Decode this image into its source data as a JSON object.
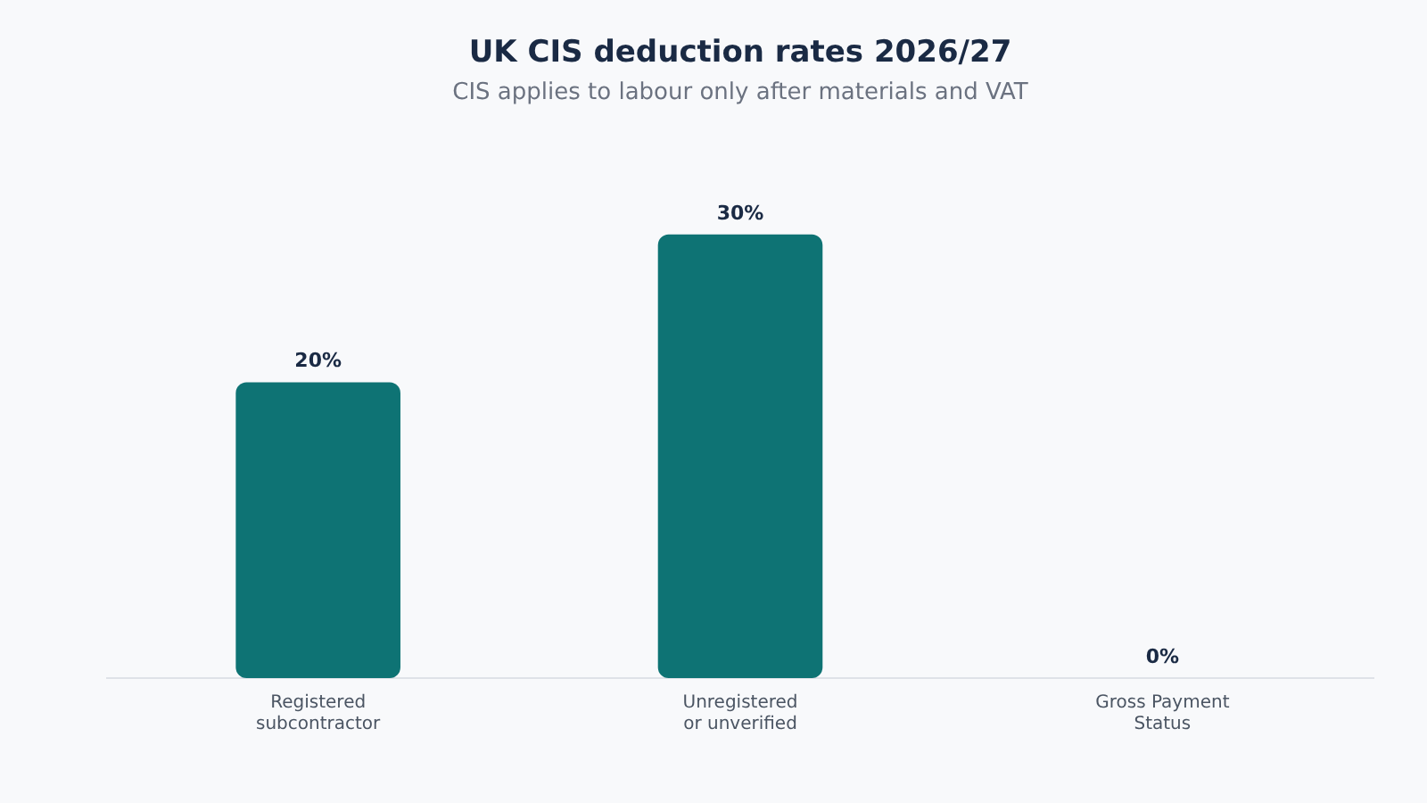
{
  "chart_data": {
    "type": "bar",
    "title": "UK CIS deduction rates 2026/27",
    "subtitle": "CIS applies to labour only after materials and VAT",
    "categories": [
      "Registered subcontractor",
      "Unregistered or unverified",
      "Gross Payment Status"
    ],
    "values": [
      20,
      30,
      0
    ],
    "value_labels": [
      "20%",
      "30%",
      "0%"
    ],
    "color": "#0e7374",
    "grid": false,
    "legend": false
  }
}
